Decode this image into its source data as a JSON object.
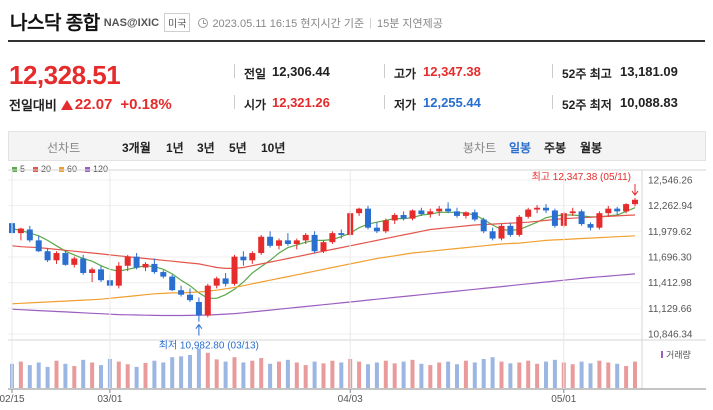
{
  "header": {
    "title": "나스닥 종합",
    "ticker": "NAS@IXIC",
    "country": "미국",
    "timestamp": "2023.05.11 16:15 현지시간 기준",
    "separator": "|",
    "delay_note": "15분 지연제공"
  },
  "quote": {
    "price": "12,328.51",
    "change_label": "전일대비",
    "change": "22.07",
    "change_pct": "+0.18%",
    "direction": "up"
  },
  "stats": [
    {
      "label": "전일",
      "value": "12,306.44",
      "color": "#222222"
    },
    {
      "label": "고가",
      "value": "12,347.38",
      "color": "#e52b2b"
    },
    {
      "label": "52주 최고",
      "value": "13,181.09",
      "color": "#222222"
    },
    {
      "label": "시가",
      "value": "12,321.26",
      "color": "#e52b2b"
    },
    {
      "label": "저가",
      "value": "12,255.44",
      "color": "#2a6fd0"
    },
    {
      "label": "52주 최저",
      "value": "10,088.83",
      "color": "#222222"
    }
  ],
  "toolbar": {
    "line_label": "선차트",
    "ranges": [
      "3개월",
      "1년",
      "3년",
      "5년",
      "10년"
    ],
    "candle_label": "봉차트",
    "periods": [
      "일봉",
      "주봉",
      "월봉"
    ],
    "active_period": "일봉"
  },
  "chart_data": {
    "type": "candlestick",
    "legend": [
      {
        "name": "5",
        "color": "#5aa84a"
      },
      {
        "name": "20",
        "color": "#e2574c"
      },
      {
        "name": "60",
        "color": "#f0a030"
      },
      {
        "name": "120",
        "color": "#9b5fc0"
      }
    ],
    "y_ticks": [
      "12,546.26",
      "12,262.94",
      "11,979.62",
      "11,696.30",
      "11,412.98",
      "11,129.66",
      "10,846.34"
    ],
    "ylim": [
      10846.34,
      12546.26
    ],
    "x_ticks": [
      "02/15",
      "03/01",
      "04/03",
      "05/01"
    ],
    "high_annotation": "최고 12,347.38 (05/11)",
    "low_annotation": "최저 10,982.80 (03/13)",
    "volume_label": "거래량",
    "up_color": "#e52b2b",
    "down_color": "#2a6fd0",
    "candles": [
      [
        12070,
        12110,
        11920,
        11960
      ],
      [
        11960,
        12020,
        11880,
        12010
      ],
      [
        12000,
        12040,
        11860,
        11880
      ],
      [
        11880,
        11930,
        11750,
        11760
      ],
      [
        11760,
        11790,
        11640,
        11660
      ],
      [
        11660,
        11760,
        11620,
        11740
      ],
      [
        11740,
        11770,
        11600,
        11610
      ],
      [
        11610,
        11700,
        11580,
        11680
      ],
      [
        11680,
        11720,
        11500,
        11520
      ],
      [
        11520,
        11580,
        11420,
        11560
      ],
      [
        11560,
        11600,
        11420,
        11440
      ],
      [
        11440,
        11500,
        11360,
        11380
      ],
      [
        11380,
        11640,
        11350,
        11600
      ],
      [
        11600,
        11720,
        11540,
        11700
      ],
      [
        11700,
        11740,
        11560,
        11580
      ],
      [
        11580,
        11640,
        11540,
        11620
      ],
      [
        11620,
        11680,
        11510,
        11530
      ],
      [
        11530,
        11550,
        11460,
        11480
      ],
      [
        11480,
        11500,
        11320,
        11330
      ],
      [
        11330,
        11380,
        11260,
        11280
      ],
      [
        11280,
        11350,
        11200,
        11220
      ],
      [
        11200,
        11250,
        10983,
        11050
      ],
      [
        11050,
        11400,
        11030,
        11380
      ],
      [
        11380,
        11480,
        11350,
        11460
      ],
      [
        11460,
        11520,
        11370,
        11400
      ],
      [
        11400,
        11720,
        11380,
        11700
      ],
      [
        11700,
        11760,
        11600,
        11660
      ],
      [
        11660,
        11760,
        11620,
        11740
      ],
      [
        11740,
        11940,
        11720,
        11920
      ],
      [
        11920,
        11980,
        11800,
        11820
      ],
      [
        11820,
        11900,
        11780,
        11880
      ],
      [
        11880,
        11960,
        11820,
        11840
      ],
      [
        11840,
        11900,
        11780,
        11880
      ],
      [
        11880,
        11960,
        11840,
        11940
      ],
      [
        11940,
        11980,
        11740,
        11760
      ],
      [
        11760,
        11880,
        11740,
        11860
      ],
      [
        11860,
        11980,
        11840,
        11960
      ],
      [
        11960,
        12000,
        11900,
        11940
      ],
      [
        11940,
        12200,
        11920,
        12180
      ],
      [
        12180,
        12240,
        12150,
        12230
      ],
      [
        12230,
        12260,
        12000,
        12020
      ],
      [
        12020,
        12080,
        11960,
        11980
      ],
      [
        11980,
        12120,
        11960,
        12100
      ],
      [
        12100,
        12180,
        12060,
        12160
      ],
      [
        12160,
        12200,
        12100,
        12120
      ],
      [
        12120,
        12220,
        12100,
        12210
      ],
      [
        12210,
        12240,
        12150,
        12170
      ],
      [
        12170,
        12230,
        12130,
        12200
      ],
      [
        12200,
        12260,
        12150,
        12230
      ],
      [
        12230,
        12300,
        12180,
        12200
      ],
      [
        12200,
        12240,
        12130,
        12150
      ],
      [
        12150,
        12200,
        12120,
        12190
      ],
      [
        12190,
        12220,
        12090,
        12110
      ],
      [
        12110,
        12130,
        11960,
        11980
      ],
      [
        11980,
        12020,
        11880,
        11900
      ],
      [
        11900,
        12060,
        11880,
        12040
      ],
      [
        12040,
        12070,
        11920,
        11940
      ],
      [
        11940,
        12160,
        11920,
        12140
      ],
      [
        12140,
        12240,
        12120,
        12220
      ],
      [
        12220,
        12270,
        12180,
        12240
      ],
      [
        12240,
        12280,
        12180,
        12210
      ],
      [
        12210,
        12230,
        12020,
        12040
      ],
      [
        12040,
        12200,
        12020,
        12180
      ],
      [
        12180,
        12240,
        12150,
        12200
      ],
      [
        12200,
        12220,
        12040,
        12060
      ],
      [
        12060,
        12080,
        11990,
        12020
      ],
      [
        12020,
        12200,
        12000,
        12180
      ],
      [
        12180,
        12260,
        12140,
        12230
      ],
      [
        12230,
        12250,
        12160,
        12200
      ],
      [
        12200,
        12290,
        12180,
        12280
      ],
      [
        12280,
        12347,
        12255,
        12328
      ]
    ],
    "ma5": [
      12010,
      11990,
      11960,
      11930,
      11880,
      11820,
      11760,
      11720,
      11680,
      11650,
      11600,
      11560,
      11540,
      11560,
      11580,
      11600,
      11590,
      11560,
      11510,
      11440,
      11380,
      11300,
      11240,
      11240,
      11280,
      11340,
      11420,
      11520,
      11590,
      11660,
      11740,
      11800,
      11830,
      11860,
      11880,
      11880,
      11890,
      11920,
      11960,
      12020,
      12060,
      12080,
      12100,
      12120,
      12120,
      12130,
      12160,
      12170,
      12190,
      12190,
      12190,
      12180,
      12160,
      12110,
      12050,
      12000,
      11990,
      12000,
      12040,
      12080,
      12130,
      12150,
      12160,
      12160,
      12150,
      12140,
      12140,
      12150,
      12160,
      12200,
      12240
    ],
    "ma20": [
      11820,
      11810,
      11805,
      11800,
      11790,
      11780,
      11770,
      11760,
      11750,
      11740,
      11730,
      11720,
      11710,
      11700,
      11690,
      11680,
      11670,
      11660,
      11650,
      11640,
      11630,
      11620,
      11600,
      11580,
      11570,
      11570,
      11580,
      11600,
      11620,
      11640,
      11660,
      11680,
      11700,
      11720,
      11740,
      11760,
      11780,
      11800,
      11820,
      11840,
      11860,
      11880,
      11900,
      11920,
      11940,
      11960,
      11980,
      12000,
      12010,
      12020,
      12030,
      12040,
      12050,
      12055,
      12060,
      12065,
      12070,
      12075,
      12080,
      12090,
      12100,
      12110,
      12120,
      12125,
      12130,
      12135,
      12140,
      12145,
      12150,
      12155,
      12160
    ],
    "ma60": [
      11180,
      11185,
      11190,
      11195,
      11200,
      11205,
      11210,
      11215,
      11220,
      11225,
      11230,
      11240,
      11250,
      11260,
      11270,
      11280,
      11290,
      11295,
      11300,
      11300,
      11305,
      11310,
      11320,
      11330,
      11345,
      11360,
      11380,
      11400,
      11420,
      11440,
      11460,
      11480,
      11500,
      11520,
      11540,
      11560,
      11580,
      11600,
      11620,
      11640,
      11660,
      11680,
      11695,
      11710,
      11725,
      11740,
      11750,
      11760,
      11770,
      11780,
      11790,
      11800,
      11810,
      11820,
      11830,
      11840,
      11845,
      11850,
      11860,
      11870,
      11880,
      11885,
      11890,
      11895,
      11900,
      11905,
      11910,
      11915,
      11920,
      11925,
      11930
    ],
    "ma120": [
      11120,
      11115,
      11110,
      11105,
      11100,
      11095,
      11090,
      11085,
      11080,
      11075,
      11070,
      11065,
      11060,
      11058,
      11056,
      11054,
      11052,
      11050,
      11050,
      11050,
      11052,
      11054,
      11056,
      11060,
      11066,
      11072,
      11080,
      11090,
      11100,
      11110,
      11120,
      11130,
      11140,
      11150,
      11160,
      11170,
      11180,
      11190,
      11200,
      11210,
      11220,
      11230,
      11240,
      11250,
      11260,
      11270,
      11280,
      11290,
      11300,
      11310,
      11320,
      11330,
      11340,
      11350,
      11360,
      11370,
      11380,
      11390,
      11400,
      11410,
      11420,
      11430,
      11440,
      11450,
      11460,
      11470,
      11478,
      11486,
      11494,
      11502,
      11510
    ],
    "volumes": [
      55,
      60,
      52,
      58,
      48,
      62,
      55,
      50,
      64,
      58,
      52,
      66,
      60,
      54,
      48,
      57,
      62,
      58,
      70,
      72,
      75,
      90,
      80,
      65,
      60,
      70,
      58,
      62,
      68,
      55,
      60,
      64,
      58,
      52,
      60,
      56,
      62,
      58,
      66,
      60,
      54,
      58,
      62,
      56,
      60,
      64,
      55,
      52,
      58,
      60,
      54,
      62,
      58,
      66,
      70,
      60,
      56,
      58,
      62,
      55,
      60,
      64,
      58,
      54,
      60,
      56,
      62,
      58,
      55,
      50,
      60
    ]
  }
}
